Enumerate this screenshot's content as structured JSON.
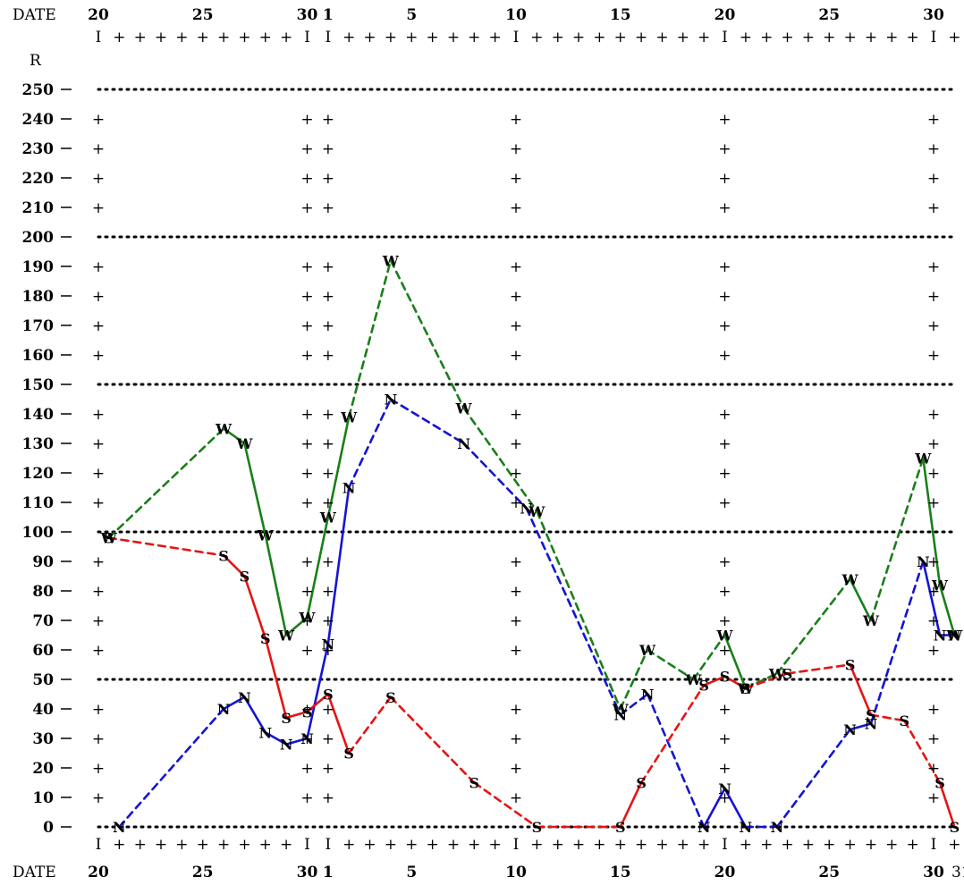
{
  "chart_data": {
    "type": "line",
    "title": "",
    "x_axis_label": "DATE",
    "y_axis_label": "R",
    "y_range": [
      0,
      250
    ],
    "y_ticks": [
      0,
      10,
      20,
      30,
      40,
      50,
      60,
      70,
      80,
      90,
      100,
      110,
      120,
      130,
      140,
      150,
      160,
      170,
      180,
      190,
      200,
      210,
      220,
      230,
      240,
      250
    ],
    "y_dotted_gridlines": [
      0,
      50,
      100,
      150,
      200,
      250
    ],
    "x_axis_note": "Day index: 0 = 20th of first month (31-day month), 11 = 1st of next month, 41 = 31st",
    "x_range_days": [
      0,
      41
    ],
    "x_tick_labels": [
      {
        "day": 0,
        "label": "20"
      },
      {
        "day": 5,
        "label": "25"
      },
      {
        "day": 10,
        "label": "30"
      },
      {
        "day": 11,
        "label": "1"
      },
      {
        "day": 15,
        "label": "5"
      },
      {
        "day": 20,
        "label": "10"
      },
      {
        "day": 25,
        "label": "15"
      },
      {
        "day": 30,
        "label": "20"
      },
      {
        "day": 35,
        "label": "25"
      },
      {
        "day": 40,
        "label": "30"
      }
    ],
    "x_major_marks": [
      0,
      10,
      11,
      20,
      30,
      40
    ],
    "x_bottom_edge_label": "31",
    "grid": true,
    "legend": null,
    "series": [
      {
        "marker": "W",
        "color": "#1a7f1a",
        "points": [
          {
            "day": 0.5,
            "value": 98
          },
          {
            "day": 6,
            "value": 135
          },
          {
            "day": 7,
            "value": 130
          },
          {
            "day": 8,
            "value": 99
          },
          {
            "day": 9,
            "value": 65
          },
          {
            "day": 10,
            "value": 71
          },
          {
            "day": 11,
            "value": 105
          },
          {
            "day": 12,
            "value": 139
          },
          {
            "day": 14,
            "value": 192
          },
          {
            "day": 17.5,
            "value": 142
          },
          {
            "day": 21,
            "value": 107
          },
          {
            "day": 25,
            "value": 40
          },
          {
            "day": 26.3,
            "value": 60
          },
          {
            "day": 28.5,
            "value": 50
          },
          {
            "day": 30,
            "value": 65
          },
          {
            "day": 31,
            "value": 47
          },
          {
            "day": 32.5,
            "value": 52
          },
          {
            "day": 36,
            "value": 84
          },
          {
            "day": 37,
            "value": 70
          },
          {
            "day": 39.5,
            "value": 125
          },
          {
            "day": 40.3,
            "value": 82
          },
          {
            "day": 41,
            "value": 65
          }
        ]
      },
      {
        "marker": "N",
        "color": "#1414d6",
        "points": [
          {
            "day": 1,
            "value": 0
          },
          {
            "day": 6,
            "value": 40
          },
          {
            "day": 7,
            "value": 44
          },
          {
            "day": 8,
            "value": 32
          },
          {
            "day": 9,
            "value": 28
          },
          {
            "day": 10,
            "value": 30
          },
          {
            "day": 11,
            "value": 62
          },
          {
            "day": 12,
            "value": 115
          },
          {
            "day": 14,
            "value": 145
          },
          {
            "day": 17.5,
            "value": 130
          },
          {
            "day": 20.5,
            "value": 108
          },
          {
            "day": 25,
            "value": 38
          },
          {
            "day": 26.3,
            "value": 45
          },
          {
            "day": 29,
            "value": 0
          },
          {
            "day": 30,
            "value": 13
          },
          {
            "day": 31,
            "value": 0
          },
          {
            "day": 32.5,
            "value": 0
          },
          {
            "day": 36,
            "value": 33
          },
          {
            "day": 37,
            "value": 35
          },
          {
            "day": 39.5,
            "value": 90
          },
          {
            "day": 40.3,
            "value": 65
          },
          {
            "day": 41,
            "value": 65
          }
        ]
      },
      {
        "marker": "S",
        "color": "#e61414",
        "points": [
          {
            "day": 0.5,
            "value": 98
          },
          {
            "day": 6,
            "value": 92
          },
          {
            "day": 7,
            "value": 85
          },
          {
            "day": 8,
            "value": 64
          },
          {
            "day": 9,
            "value": 37
          },
          {
            "day": 10,
            "value": 39
          },
          {
            "day": 11,
            "value": 45
          },
          {
            "day": 12,
            "value": 25
          },
          {
            "day": 14,
            "value": 44
          },
          {
            "day": 18,
            "value": 15
          },
          {
            "day": 21,
            "value": 0
          },
          {
            "day": 25,
            "value": 0
          },
          {
            "day": 26,
            "value": 15
          },
          {
            "day": 29,
            "value": 48
          },
          {
            "day": 30,
            "value": 51
          },
          {
            "day": 31,
            "value": 47
          },
          {
            "day": 33,
            "value": 52
          },
          {
            "day": 36,
            "value": 55
          },
          {
            "day": 37,
            "value": 38
          },
          {
            "day": 38.6,
            "value": 36
          },
          {
            "day": 40.3,
            "value": 15
          },
          {
            "day": 41,
            "value": 0
          }
        ]
      }
    ]
  }
}
